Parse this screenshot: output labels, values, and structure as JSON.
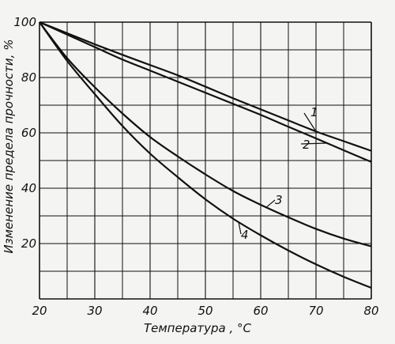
{
  "chart_data": {
    "type": "line",
    "title": "",
    "xlabel": "Температура , °С",
    "ylabel": "Изменение предела прочности, %",
    "xlim": [
      20,
      80
    ],
    "ylim": [
      0,
      100
    ],
    "x_ticks": [
      "20",
      "30",
      "40",
      "50",
      "60",
      "70",
      "80"
    ],
    "y_ticks": [
      "20",
      "40",
      "60",
      "80",
      "100"
    ],
    "grid": true,
    "x": [
      20,
      25,
      30,
      35,
      40,
      45,
      50,
      55,
      60,
      65,
      70,
      75,
      80
    ],
    "series": [
      {
        "name": "1",
        "values": [
          100,
          96,
          92,
          88.2,
          84.5,
          80.8,
          76.7,
          72.5,
          68.5,
          64.5,
          60.5,
          57,
          53.5
        ]
      },
      {
        "name": "2",
        "values": [
          100,
          95.5,
          91,
          86.5,
          82.5,
          78.5,
          74.5,
          70.5,
          66.5,
          62.2,
          58,
          53.7,
          49.5
        ]
      },
      {
        "name": "3",
        "values": [
          100,
          87,
          76.5,
          67,
          58.5,
          51.5,
          45,
          39,
          34,
          29.5,
          25.3,
          21.8,
          19
        ]
      },
      {
        "name": "4",
        "values": [
          100,
          86,
          74,
          62.5,
          52.5,
          44,
          36,
          29,
          23,
          17.5,
          12.5,
          8,
          4
        ]
      }
    ]
  }
}
